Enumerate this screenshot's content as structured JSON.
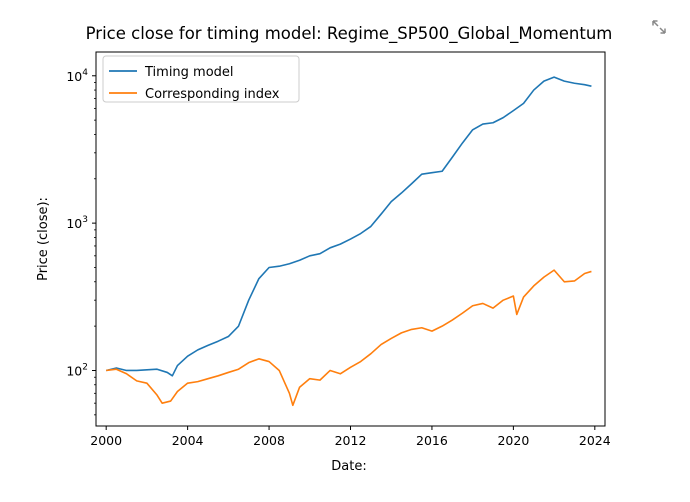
{
  "chart_data": {
    "type": "line",
    "title": "Price close for timing model: Regime_SP500_Global_Momentum",
    "xlabel": "Date:",
    "ylabel": "Price (close):",
    "x_range": [
      "1999-07",
      "2024-07"
    ],
    "y_scale": "log",
    "ylim": [
      42,
      14500
    ],
    "x_ticks": [
      2000,
      2004,
      2008,
      2012,
      2016,
      2020,
      2024
    ],
    "x_tick_labels": [
      "2000",
      "2004",
      "2008",
      "2012",
      "2016",
      "2020",
      "2024"
    ],
    "y_ticks": [
      {
        "value": 100,
        "base": "10",
        "exp": "2"
      },
      {
        "value": 1000,
        "base": "10",
        "exp": "3"
      },
      {
        "value": 10000,
        "base": "10",
        "exp": "4"
      }
    ],
    "grid": false,
    "legend": "top-left",
    "series": [
      {
        "name": "Timing model",
        "color": "#1f77b4",
        "points": [
          [
            "2000-01",
            100
          ],
          [
            "2000-07",
            104
          ],
          [
            "2001-01",
            100
          ],
          [
            "2001-07",
            100
          ],
          [
            "2002-01",
            101
          ],
          [
            "2002-07",
            102
          ],
          [
            "2003-01",
            97
          ],
          [
            "2003-04",
            92
          ],
          [
            "2003-07",
            108
          ],
          [
            "2004-01",
            125
          ],
          [
            "2004-07",
            138
          ],
          [
            "2005-01",
            148
          ],
          [
            "2005-07",
            158
          ],
          [
            "2006-01",
            170
          ],
          [
            "2006-07",
            200
          ],
          [
            "2007-01",
            300
          ],
          [
            "2007-07",
            420
          ],
          [
            "2008-01",
            500
          ],
          [
            "2008-07",
            510
          ],
          [
            "2009-01",
            530
          ],
          [
            "2009-07",
            560
          ],
          [
            "2010-01",
            600
          ],
          [
            "2010-07",
            620
          ],
          [
            "2011-01",
            680
          ],
          [
            "2011-07",
            720
          ],
          [
            "2012-01",
            780
          ],
          [
            "2012-07",
            850
          ],
          [
            "2013-01",
            950
          ],
          [
            "2013-07",
            1150
          ],
          [
            "2014-01",
            1400
          ],
          [
            "2014-07",
            1600
          ],
          [
            "2015-01",
            1850
          ],
          [
            "2015-07",
            2150
          ],
          [
            "2016-01",
            2200
          ],
          [
            "2016-07",
            2250
          ],
          [
            "2017-01",
            2800
          ],
          [
            "2017-07",
            3500
          ],
          [
            "2018-01",
            4300
          ],
          [
            "2018-07",
            4700
          ],
          [
            "2019-01",
            4800
          ],
          [
            "2019-07",
            5200
          ],
          [
            "2020-01",
            5800
          ],
          [
            "2020-07",
            6500
          ],
          [
            "2021-01",
            8000
          ],
          [
            "2021-07",
            9200
          ],
          [
            "2022-01",
            9800
          ],
          [
            "2022-07",
            9200
          ],
          [
            "2023-01",
            8900
          ],
          [
            "2023-07",
            8700
          ],
          [
            "2023-11",
            8500
          ]
        ]
      },
      {
        "name": "Corresponding index",
        "color": "#ff7f0e",
        "points": [
          [
            "2000-01",
            100
          ],
          [
            "2000-07",
            102
          ],
          [
            "2001-01",
            95
          ],
          [
            "2001-07",
            85
          ],
          [
            "2002-01",
            82
          ],
          [
            "2002-07",
            68
          ],
          [
            "2002-10",
            60
          ],
          [
            "2003-03",
            62
          ],
          [
            "2003-07",
            72
          ],
          [
            "2004-01",
            82
          ],
          [
            "2004-07",
            84
          ],
          [
            "2005-01",
            88
          ],
          [
            "2005-07",
            92
          ],
          [
            "2006-01",
            97
          ],
          [
            "2006-07",
            102
          ],
          [
            "2007-01",
            113
          ],
          [
            "2007-07",
            120
          ],
          [
            "2008-01",
            115
          ],
          [
            "2008-07",
            100
          ],
          [
            "2009-01",
            70
          ],
          [
            "2009-03",
            58
          ],
          [
            "2009-07",
            77
          ],
          [
            "2010-01",
            88
          ],
          [
            "2010-07",
            86
          ],
          [
            "2011-01",
            100
          ],
          [
            "2011-07",
            95
          ],
          [
            "2012-01",
            105
          ],
          [
            "2012-07",
            115
          ],
          [
            "2013-01",
            130
          ],
          [
            "2013-07",
            150
          ],
          [
            "2014-01",
            165
          ],
          [
            "2014-07",
            180
          ],
          [
            "2015-01",
            190
          ],
          [
            "2015-07",
            195
          ],
          [
            "2016-01",
            185
          ],
          [
            "2016-07",
            200
          ],
          [
            "2017-01",
            220
          ],
          [
            "2017-07",
            245
          ],
          [
            "2018-01",
            275
          ],
          [
            "2018-07",
            285
          ],
          [
            "2019-01",
            265
          ],
          [
            "2019-07",
            300
          ],
          [
            "2020-01",
            320
          ],
          [
            "2020-03",
            240
          ],
          [
            "2020-07",
            315
          ],
          [
            "2021-01",
            375
          ],
          [
            "2021-07",
            430
          ],
          [
            "2022-01",
            480
          ],
          [
            "2022-07",
            400
          ],
          [
            "2023-01",
            405
          ],
          [
            "2023-07",
            455
          ],
          [
            "2023-11",
            470
          ]
        ]
      }
    ]
  },
  "toolbar": {
    "expand_icon": "expand-icon"
  }
}
